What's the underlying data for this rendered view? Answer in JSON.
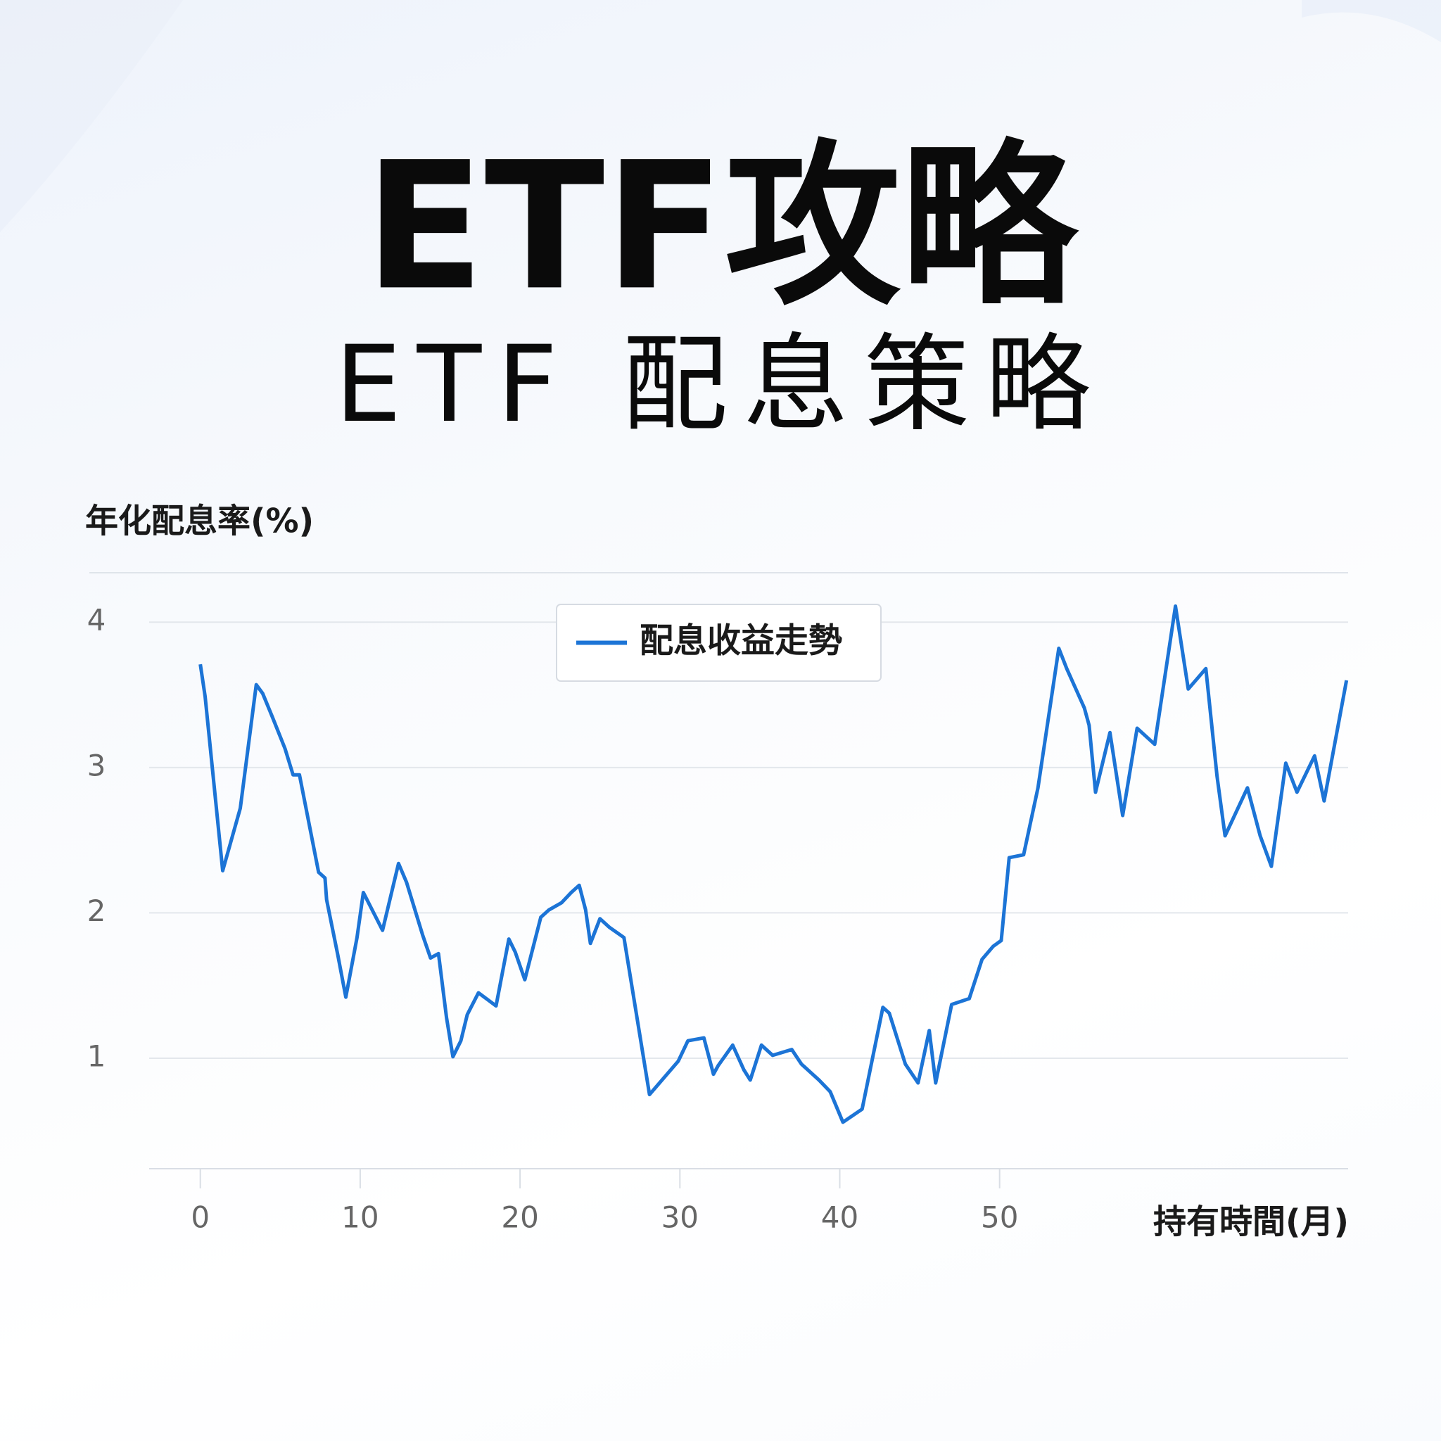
{
  "chart_data": {
    "type": "line",
    "title": "ETF攻略",
    "subtitle": "ETF 配息策略",
    "y_label": "年化配息率(%)",
    "x_label": "持有時間(月)",
    "x": [
      0,
      0.3,
      1.4,
      2.5,
      3.5,
      3.9,
      4.5,
      5.3,
      5.8,
      6.2,
      7.4,
      7.8,
      7.9,
      8.6,
      9.1,
      9.8,
      10.2,
      11.4,
      12.4,
      12.9,
      13.9,
      14.4,
      14.9,
      15.4,
      15.8,
      16.3,
      16.7,
      17.4,
      18.5,
      19.3,
      19.7,
      20.3,
      21.3,
      21.8,
      22.6,
      23.2,
      23.7,
      24.1,
      24.4,
      25.0,
      25.6,
      26.5,
      28.1,
      29.9,
      30.5,
      31.5,
      32.1,
      32.4,
      33.3,
      34.0,
      34.4,
      35.1,
      35.8,
      37.0,
      37.6,
      38.7,
      39.4,
      40.2,
      41.4,
      42.7,
      43.1,
      44.1,
      44.9,
      45.6,
      46.0,
      47.0,
      48.1,
      48.9,
      49.6,
      50.1,
      50.6,
      51.5,
      52.4,
      53.7,
      54.2,
      55.3,
      55.6,
      56.0,
      56.9,
      57.7,
      58.6,
      59.7,
      61.0,
      61.8,
      62.9,
      63.6,
      64.1,
      65.5,
      66.3,
      67.0,
      67.9,
      68.6,
      69.7,
      70.3,
      71.7
    ],
    "series": [
      {
        "name": "配息收益走勢",
        "color": "#1c74d6",
        "values": [
          3.71,
          3.49,
          2.29,
          2.72,
          3.57,
          3.51,
          3.35,
          3.13,
          2.95,
          2.95,
          2.28,
          2.24,
          2.09,
          1.71,
          1.42,
          1.83,
          2.14,
          1.88,
          2.34,
          2.21,
          1.85,
          1.69,
          1.72,
          1.28,
          1.01,
          1.12,
          1.3,
          1.45,
          1.36,
          1.82,
          1.73,
          1.54,
          1.97,
          2.02,
          2.07,
          2.14,
          2.19,
          2.02,
          1.79,
          1.96,
          1.9,
          1.83,
          0.75,
          0.98,
          1.12,
          1.14,
          0.89,
          0.95,
          1.09,
          0.92,
          0.85,
          1.09,
          1.02,
          1.06,
          0.96,
          0.85,
          0.77,
          0.56,
          0.65,
          1.35,
          1.31,
          0.96,
          0.83,
          1.19,
          0.83,
          1.37,
          1.41,
          1.68,
          1.77,
          1.81,
          2.38,
          2.4,
          2.86,
          3.82,
          3.68,
          3.41,
          3.29,
          2.83,
          3.24,
          2.67,
          3.27,
          3.16,
          4.11,
          3.54,
          3.68,
          2.94,
          2.53,
          2.86,
          2.53,
          2.32,
          3.03,
          2.83,
          3.08,
          2.77,
          3.6
        ]
      }
    ],
    "xlim": [
      -3.2,
      71.8
    ],
    "xticks": [
      0,
      10,
      20,
      30,
      40,
      50
    ],
    "ylim": [
      0.24,
      4.34
    ],
    "yticks": [
      1,
      2,
      3,
      4
    ],
    "grid": true,
    "legend": "top"
  }
}
